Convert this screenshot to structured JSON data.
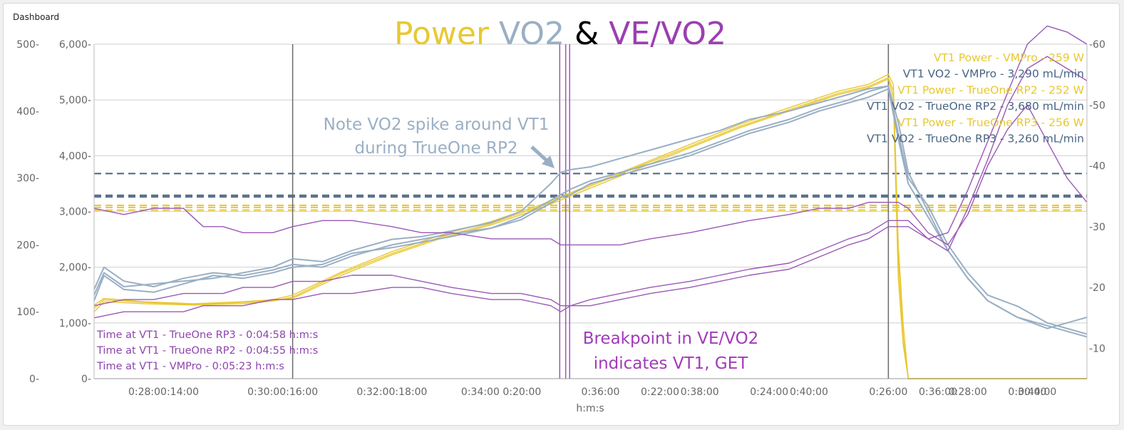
{
  "panel": {
    "title": "Dashboard"
  },
  "colors": {
    "power": "#e8c832",
    "vo2": "#9aafc4",
    "vo2_dark": "#4a6584",
    "vevo2": "#9b59b6",
    "marker": "#6a6a6a",
    "grid": "#cfcfcf"
  },
  "chart_data": {
    "type": "line",
    "title": {
      "power": "Power",
      "vo2": "VO2",
      "amp": "&",
      "vevo2": "VE/VO2"
    },
    "xlabel": "h:m:s",
    "power_axis": {
      "ticks": [
        "0-",
        "100-",
        "200-",
        "300-",
        "400-",
        "500-"
      ],
      "range": [
        0,
        500
      ]
    },
    "vo2_axis": {
      "ticks": [
        "0-",
        "1,000-",
        "2,000-",
        "3,000-",
        "4,000-",
        "5,000-",
        "6,000-"
      ],
      "range": [
        0,
        6000
      ]
    },
    "vevo2_axis": {
      "ticks": [
        "-10",
        "-20",
        "-30",
        "-40",
        "-50",
        "-60"
      ],
      "range": [
        5,
        60
      ]
    },
    "x_ticks": [
      "0:28:00:14:00",
      "0:30:00:16:00",
      "0:32:00:18:00",
      "0:34:00 0:20:00",
      "0:36:00",
      "0:22:00",
      "0:38:00",
      "0:24:00",
      "0:40:00",
      "0:26:00",
      "0:36:00",
      "0:28:00",
      "0:30:00",
      "0:44:00"
    ],
    "x_range": [
      0,
      100
    ],
    "x_tick_positions": [
      7,
      19,
      30,
      41,
      51,
      57,
      61,
      68,
      72,
      80,
      85,
      88,
      94,
      95
    ],
    "vertical_markers": [
      20,
      80
    ],
    "vt1_markers": [
      46.9,
      47.5,
      47.9
    ],
    "hlines_vo2": [
      {
        "value": 3680,
        "color": "vo2_dark"
      },
      {
        "value": 3290,
        "color": "vo2_dark"
      },
      {
        "value": 3260,
        "color": "vo2_dark"
      }
    ],
    "hlines_power": [
      259,
      256,
      252
    ],
    "series": [
      {
        "name": "Power VMPro",
        "axis": "power",
        "x": [
          0,
          1,
          5,
          10,
          15,
          18,
          20,
          25,
          30,
          35,
          40,
          45,
          50,
          55,
          60,
          65,
          70,
          75,
          78,
          80,
          80.5,
          81,
          81.5,
          82,
          84,
          90,
          100
        ],
        "values": [
          110,
          120,
          115,
          112,
          115,
          118,
          125,
          160,
          190,
          215,
          235,
          260,
          290,
          320,
          350,
          380,
          405,
          430,
          440,
          455,
          440,
          200,
          80,
          0,
          0,
          0,
          0
        ]
      },
      {
        "name": "Power TrueOne RP2",
        "axis": "power",
        "x": [
          0,
          1,
          5,
          10,
          15,
          18,
          20,
          25,
          30,
          35,
          40,
          45,
          50,
          55,
          60,
          65,
          70,
          75,
          78,
          80,
          80.5,
          81,
          81.5,
          82,
          84,
          90,
          100
        ],
        "values": [
          100,
          115,
          112,
          110,
          112,
          116,
          122,
          158,
          187,
          212,
          232,
          258,
          288,
          318,
          347,
          377,
          402,
          427,
          437,
          450,
          430,
          180,
          60,
          0,
          0,
          0,
          0
        ]
      },
      {
        "name": "Power TrueOne RP3",
        "axis": "power",
        "x": [
          0,
          1,
          5,
          10,
          15,
          18,
          20,
          25,
          30,
          35,
          40,
          45,
          50,
          55,
          60,
          65,
          70,
          75,
          78,
          80,
          80.5,
          81,
          81.5,
          82,
          84,
          90,
          100
        ],
        "values": [
          105,
          118,
          114,
          111,
          114,
          117,
          120,
          155,
          185,
          210,
          230,
          255,
          285,
          315,
          345,
          375,
          400,
          425,
          435,
          448,
          420,
          150,
          50,
          0,
          0,
          0,
          0
        ]
      },
      {
        "name": "VO2 VMPro",
        "axis": "vo2",
        "x": [
          0,
          1,
          3,
          6,
          9,
          12,
          15,
          18,
          20,
          23,
          26,
          30,
          33,
          36,
          40,
          43,
          46,
          47,
          48,
          50,
          53,
          56,
          60,
          63,
          66,
          70,
          73,
          76,
          78,
          80,
          81,
          82,
          84,
          86,
          88,
          90,
          93,
          96,
          98,
          100
        ],
        "values": [
          1600,
          2000,
          1750,
          1650,
          1800,
          1900,
          1850,
          1950,
          2050,
          2000,
          2200,
          2400,
          2500,
          2600,
          2700,
          2900,
          3200,
          3300,
          3400,
          3550,
          3700,
          3850,
          4050,
          4250,
          4450,
          4650,
          4850,
          5000,
          5150,
          5250,
          4400,
          3600,
          3100,
          2400,
          1900,
          1500,
          1300,
          1000,
          900,
          800
        ]
      },
      {
        "name": "VO2 TrueOne RP2",
        "axis": "vo2",
        "x": [
          0,
          1,
          3,
          6,
          9,
          12,
          15,
          18,
          20,
          23,
          26,
          30,
          33,
          36,
          40,
          43,
          46,
          47,
          48,
          50,
          53,
          56,
          60,
          63,
          66,
          70,
          73,
          76,
          78,
          80,
          81,
          82,
          84,
          86,
          88,
          90,
          93,
          96,
          98,
          100
        ],
        "values": [
          1500,
          1900,
          1650,
          1700,
          1750,
          1800,
          1900,
          2000,
          2150,
          2100,
          2300,
          2500,
          2550,
          2650,
          2800,
          3000,
          3500,
          3700,
          3750,
          3800,
          3950,
          4100,
          4300,
          4450,
          4650,
          4800,
          4950,
          5100,
          5200,
          5250,
          4600,
          3700,
          3000,
          2300,
          1800,
          1400,
          1100,
          900,
          1000,
          1100
        ]
      },
      {
        "name": "VO2 TrueOne RP3",
        "axis": "vo2",
        "x": [
          0,
          1,
          3,
          6,
          9,
          12,
          15,
          18,
          20,
          23,
          26,
          30,
          33,
          36,
          40,
          43,
          46,
          47,
          48,
          50,
          53,
          56,
          60,
          63,
          66,
          70,
          73,
          76,
          78,
          80,
          81,
          82,
          84,
          86,
          88,
          90,
          93,
          96,
          98,
          100
        ],
        "values": [
          1400,
          1850,
          1600,
          1550,
          1700,
          1850,
          1800,
          1900,
          2000,
          2050,
          2250,
          2350,
          2450,
          2550,
          2700,
          2850,
          3150,
          3250,
          3300,
          3500,
          3650,
          3800,
          4000,
          4200,
          4400,
          4600,
          4800,
          4950,
          5050,
          5200,
          4300,
          3500,
          2900,
          2300,
          1800,
          1400,
          1100,
          950,
          850,
          750
        ]
      },
      {
        "name": "VE/VO2 VMPro",
        "axis": "vevo2",
        "x": [
          0,
          3,
          6,
          9,
          11,
          13,
          15,
          18,
          20,
          23,
          26,
          30,
          33,
          36,
          40,
          43,
          46,
          47,
          48,
          50,
          53,
          56,
          60,
          63,
          66,
          70,
          73,
          76,
          78,
          80,
          81,
          82,
          84,
          86,
          88,
          90,
          92,
          94,
          96,
          98,
          100
        ],
        "values": [
          33,
          32,
          33,
          33,
          30,
          30,
          29,
          29,
          30,
          31,
          31,
          30,
          29,
          29,
          28,
          28,
          28,
          27,
          27,
          27,
          27,
          28,
          29,
          30,
          31,
          32,
          33,
          33,
          34,
          34,
          34,
          33,
          29,
          27,
          32,
          40,
          46,
          50,
          44,
          38,
          34
        ]
      },
      {
        "name": "VE/VO2 TrueOne RP2",
        "axis": "vevo2",
        "x": [
          0,
          3,
          6,
          9,
          11,
          13,
          15,
          18,
          20,
          23,
          26,
          30,
          33,
          36,
          40,
          43,
          46,
          47,
          48,
          50,
          53,
          56,
          60,
          63,
          66,
          70,
          73,
          76,
          78,
          80,
          81,
          82,
          84,
          86,
          88,
          90,
          92,
          94,
          96,
          98,
          100
        ],
        "values": [
          17,
          18,
          18,
          19,
          19,
          19,
          20,
          20,
          21,
          21,
          22,
          22,
          21,
          20,
          19,
          19,
          18,
          17,
          17,
          18,
          19,
          20,
          21,
          22,
          23,
          24,
          26,
          28,
          29,
          31,
          31,
          31,
          28,
          26,
          33,
          41,
          50,
          56,
          58,
          56,
          54
        ]
      },
      {
        "name": "VE/VO2 TrueOne RP3",
        "axis": "vevo2",
        "x": [
          0,
          3,
          6,
          9,
          11,
          13,
          15,
          18,
          20,
          23,
          26,
          30,
          33,
          36,
          40,
          43,
          46,
          47,
          48,
          50,
          53,
          56,
          60,
          63,
          66,
          70,
          73,
          76,
          78,
          80,
          81,
          82,
          84,
          86,
          88,
          90,
          92,
          94,
          96,
          98,
          100
        ],
        "values": [
          15,
          16,
          16,
          16,
          17,
          17,
          17,
          18,
          18,
          19,
          19,
          20,
          20,
          19,
          18,
          18,
          17,
          16,
          17,
          17,
          18,
          19,
          20,
          21,
          22,
          23,
          25,
          27,
          28,
          30,
          30,
          30,
          28,
          29,
          36,
          44,
          52,
          60,
          63,
          62,
          60
        ]
      }
    ],
    "legend_right": [
      {
        "text": "VT1 Power - VMPro - 259 W",
        "color": "power"
      },
      {
        "text": "VT1 VO2 - VMPro - 3,290 mL/min",
        "color": "vo2_dark"
      },
      {
        "text": "VT1 Power - TrueOne RP2 - 252 W",
        "color": "power"
      },
      {
        "text": "VT1 VO2 - TrueOne RP2 - 3,680 mL/min",
        "color": "vo2_dark"
      },
      {
        "text": "VT1 Power - TrueOne RP3 - 256 W",
        "color": "power"
      },
      {
        "text": "VT1 VO2 - TrueOne RP3 - 3,260 mL/min",
        "color": "vo2_dark"
      }
    ],
    "legend_left": [
      "Time at VT1 - TrueOne RP3 - 0:04:58 h:m:s",
      "Time at VT1 - TrueOne RP2 - 0:04:55 h:m:s",
      "Time at VT1 - VMPro - 0:05:23 h:m:s"
    ],
    "annotations": {
      "vo2_note_line1": "Note VO2 spike around VT1",
      "vo2_note_line2": "during TrueOne RP2",
      "breakpoint_line1": "Breakpoint in VE/VO2",
      "breakpoint_line2": "indicates VT1, GET"
    }
  }
}
